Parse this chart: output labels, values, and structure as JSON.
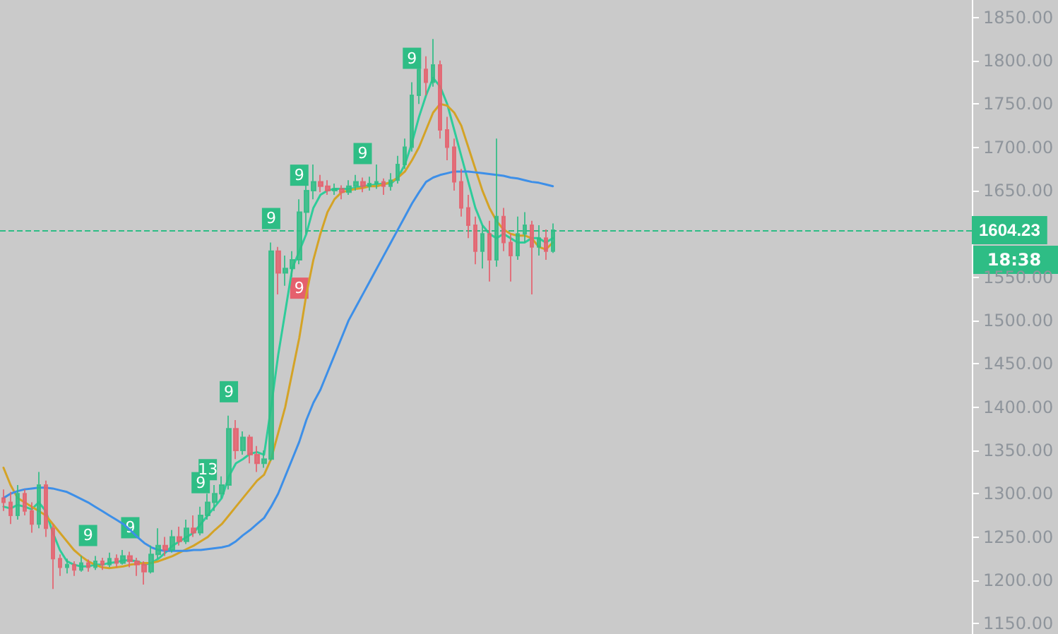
{
  "chart_data": {
    "type": "candlestick",
    "categories": [
      null,
      null,
      null,
      null,
      null,
      null,
      null,
      null,
      null,
      null,
      null,
      null,
      null,
      null,
      null,
      null,
      null,
      null,
      null,
      null,
      null,
      null,
      null,
      null,
      null,
      null,
      null,
      null,
      null,
      null,
      null,
      null,
      null,
      null,
      null,
      null,
      null,
      null,
      null,
      null,
      null,
      null,
      null,
      null,
      null,
      null,
      null,
      null,
      null,
      null,
      null,
      null,
      null,
      null,
      null,
      null,
      null,
      null,
      null,
      null,
      null,
      null,
      null,
      null,
      null,
      null,
      null,
      null,
      null,
      null,
      null,
      null,
      null,
      null,
      null,
      null,
      null,
      null,
      null,
      null,
      null,
      null,
      null,
      null,
      null,
      null,
      null,
      null,
      null,
      null,
      null,
      null,
      null,
      null,
      null,
      null,
      null,
      null,
      null,
      null,
      null,
      null,
      null,
      null,
      null,
      null,
      null,
      null,
      null,
      null,
      null,
      null,
      null,
      null,
      null,
      null,
      null,
      null,
      null,
      null,
      null,
      null,
      null,
      null,
      null,
      null,
      null,
      null,
      null,
      null,
      null,
      null,
      null,
      null,
      null,
      null,
      null,
      null
    ],
    "colors": [
      "#e5606d",
      "#e5606d",
      "#2ebd85",
      "#e5606d",
      "#e5606d",
      "#2ebd85",
      "#e5606d",
      "#e5606d",
      "#e5606d",
      "#2ebd85",
      "#e5606d",
      "#2ebd85",
      "#e5606d",
      "#2ebd85",
      "#e5606d",
      "#2ebd85",
      "#e5606d",
      "#2ebd85",
      "#e5606d",
      "#e5606d",
      "#e5606d",
      "#2ebd85",
      "#2ebd85",
      "#e5606d",
      "#2ebd85",
      "#e5606d",
      "#2ebd85",
      "#e5606d",
      "#2ebd85",
      "#2ebd85",
      "#2ebd85",
      "#2ebd85",
      "#2ebd85",
      "#e5606d",
      "#2ebd85",
      "#e5606d",
      "#e5606d",
      "#2ebd85",
      "#2ebd85",
      "#e5606d",
      "#2ebd85",
      "#2ebd85",
      "#2ebd85",
      "#2ebd85",
      "#2ebd85",
      "#e5606d",
      "#e5606d",
      "#2ebd85",
      "#e5606d",
      "#2ebd85",
      "#2ebd85",
      "#e5606d",
      "#2ebd85",
      "#2ebd85",
      "#e5606d",
      "#2ebd85",
      "#2ebd85",
      "#2ebd85",
      "#2ebd85",
      "#2ebd85",
      "#e5606d",
      "#2ebd85",
      "#e5606d",
      "#e5606d",
      "#e5606d",
      "#e5606d",
      "#e5606d",
      "#e5606d",
      "#2ebd85",
      "#e5606d",
      "#2ebd85",
      "#e5606d",
      "#e5606d",
      "#2ebd85",
      "#2ebd85",
      "#e5606d",
      "#2ebd85",
      "#e5606d",
      "#2ebd85",
      null,
      null,
      null,
      null,
      null,
      null,
      null,
      null,
      null,
      null,
      null,
      null,
      null,
      null,
      null,
      null,
      null,
      null,
      null,
      null,
      null,
      null,
      null,
      null,
      null,
      null,
      null,
      null,
      null,
      null,
      null,
      null,
      null,
      null,
      null,
      null,
      null,
      null,
      null,
      null,
      null,
      null,
      null,
      null,
      null,
      null,
      null,
      null,
      null,
      null,
      null,
      null,
      null,
      null,
      null,
      null,
      null,
      null,
      null
    ],
    "ohlc": [
      [
        1295,
        1305,
        1280,
        1290
      ],
      [
        1290,
        1302,
        1265,
        1275
      ],
      [
        1275,
        1310,
        1270,
        1300
      ],
      [
        1300,
        1305,
        1275,
        1280
      ],
      [
        1280,
        1290,
        1255,
        1265
      ],
      [
        1265,
        1325,
        1260,
        1310
      ],
      [
        1310,
        1315,
        1250,
        1260
      ],
      [
        1260,
        1265,
        1190,
        1225
      ],
      [
        1225,
        1230,
        1205,
        1215
      ],
      [
        1215,
        1225,
        1208,
        1218
      ],
      [
        1218,
        1222,
        1205,
        1212
      ],
      [
        1212,
        1228,
        1210,
        1220
      ],
      [
        1220,
        1224,
        1210,
        1215
      ],
      [
        1215,
        1228,
        1212,
        1222
      ],
      [
        1222,
        1226,
        1212,
        1218
      ],
      [
        1218,
        1232,
        1215,
        1225
      ],
      [
        1225,
        1230,
        1215,
        1220
      ],
      [
        1220,
        1235,
        1218,
        1228
      ],
      [
        1228,
        1233,
        1215,
        1222
      ],
      [
        1222,
        1226,
        1205,
        1218
      ],
      [
        1218,
        1222,
        1195,
        1210
      ],
      [
        1210,
        1240,
        1208,
        1230
      ],
      [
        1230,
        1260,
        1225,
        1240
      ],
      [
        1240,
        1250,
        1228,
        1235
      ],
      [
        1235,
        1258,
        1232,
        1250
      ],
      [
        1250,
        1262,
        1240,
        1245
      ],
      [
        1245,
        1270,
        1242,
        1260
      ],
      [
        1260,
        1275,
        1250,
        1255
      ],
      [
        1255,
        1285,
        1252,
        1275
      ],
      [
        1275,
        1300,
        1270,
        1290
      ],
      [
        1290,
        1310,
        1280,
        1300
      ],
      [
        1300,
        1320,
        1295,
        1310
      ],
      [
        1310,
        1390,
        1305,
        1375
      ],
      [
        1375,
        1385,
        1340,
        1350
      ],
      [
        1350,
        1372,
        1345,
        1365
      ],
      [
        1365,
        1368,
        1335,
        1345
      ],
      [
        1345,
        1355,
        1325,
        1335
      ],
      [
        1335,
        1350,
        1330,
        1340
      ],
      [
        1340,
        1590,
        1338,
        1580
      ],
      [
        1580,
        1585,
        1530,
        1555
      ],
      [
        1555,
        1575,
        1540,
        1560
      ],
      [
        1560,
        1580,
        1550,
        1570
      ],
      [
        1570,
        1640,
        1565,
        1625
      ],
      [
        1625,
        1663,
        1600,
        1650
      ],
      [
        1650,
        1680,
        1640,
        1660
      ],
      [
        1660,
        1668,
        1648,
        1655
      ],
      [
        1655,
        1662,
        1645,
        1650
      ],
      [
        1650,
        1658,
        1645,
        1652
      ],
      [
        1652,
        1656,
        1640,
        1648
      ],
      [
        1648,
        1662,
        1645,
        1655
      ],
      [
        1655,
        1668,
        1650,
        1660
      ],
      [
        1660,
        1665,
        1648,
        1655
      ],
      [
        1655,
        1666,
        1650,
        1658
      ],
      [
        1658,
        1680,
        1652,
        1660
      ],
      [
        1660,
        1664,
        1645,
        1655
      ],
      [
        1655,
        1670,
        1650,
        1662
      ],
      [
        1662,
        1690,
        1658,
        1680
      ],
      [
        1680,
        1710,
        1675,
        1700
      ],
      [
        1700,
        1775,
        1695,
        1760
      ],
      [
        1760,
        1810,
        1750,
        1790
      ],
      [
        1790,
        1805,
        1760,
        1775
      ],
      [
        1775,
        1825,
        1770,
        1795
      ],
      [
        1795,
        1800,
        1710,
        1720
      ],
      [
        1720,
        1735,
        1685,
        1700
      ],
      [
        1700,
        1710,
        1650,
        1660
      ],
      [
        1660,
        1675,
        1620,
        1630
      ],
      [
        1630,
        1645,
        1595,
        1610
      ],
      [
        1610,
        1620,
        1565,
        1580
      ],
      [
        1580,
        1610,
        1560,
        1600
      ],
      [
        1600,
        1615,
        1545,
        1570
      ],
      [
        1570,
        1710,
        1562,
        1620
      ],
      [
        1620,
        1630,
        1580,
        1590
      ],
      [
        1590,
        1600,
        1545,
        1575
      ],
      [
        1575,
        1620,
        1570,
        1600
      ],
      [
        1600,
        1625,
        1590,
        1610
      ],
      [
        1610,
        1615,
        1530,
        1585
      ],
      [
        1585,
        1610,
        1575,
        1595
      ],
      [
        1595,
        1605,
        1570,
        1580
      ],
      [
        1580,
        1612,
        1578,
        1604.23
      ],
      null,
      null,
      null,
      null,
      null,
      null,
      null,
      null,
      null,
      null,
      null,
      null,
      null,
      null,
      null,
      null,
      null,
      null,
      null,
      null,
      null,
      null,
      null,
      null,
      null,
      null,
      null,
      null,
      null,
      null,
      null,
      null,
      null,
      null,
      null,
      null,
      null,
      null,
      null,
      null,
      null,
      null,
      null,
      null,
      null,
      null,
      null,
      null,
      null,
      null,
      null,
      null,
      null,
      null,
      null,
      null,
      null,
      null,
      null
    ],
    "series": [
      {
        "type": "line",
        "color": "#2ecc9a",
        "values": [
          1285,
          1283,
          1287,
          1285,
          1282,
          1290,
          1280,
          1255,
          1235,
          1222,
          1218,
          1216,
          1216,
          1218,
          1218,
          1220,
          1221,
          1223,
          1223,
          1222,
          1218,
          1220,
          1225,
          1232,
          1240,
          1245,
          1250,
          1255,
          1265,
          1275,
          1285,
          1295,
          1320,
          1335,
          1340,
          1346,
          1348,
          1345,
          1400,
          1460,
          1510,
          1560,
          1580,
          1600,
          1630,
          1645,
          1650,
          1652,
          1652,
          1652,
          1653,
          1655,
          1656,
          1657,
          1658,
          1658,
          1665,
          1680,
          1705,
          1735,
          1760,
          1780,
          1770,
          1750,
          1720,
          1690,
          1660,
          1630,
          1610,
          1600,
          1595,
          1600,
          1595,
          1590,
          1590,
          1595,
          1595,
          1590,
          1595,
          null,
          null,
          null,
          null,
          null,
          null,
          null,
          null,
          null,
          null,
          null,
          null,
          null,
          null,
          null,
          null,
          null,
          null,
          null,
          null,
          null,
          null,
          null,
          null,
          null,
          null,
          null,
          null,
          null,
          null,
          null,
          null,
          null,
          null,
          null,
          null,
          null,
          null,
          null,
          null,
          null,
          null,
          null,
          null,
          null,
          null,
          null,
          null,
          null,
          null,
          null,
          null,
          null,
          null,
          null,
          null,
          null,
          null,
          null
        ]
      },
      {
        "type": "line",
        "color": "#d4a326",
        "values": [
          1330,
          1310,
          1295,
          1290,
          1285,
          1280,
          1275,
          1265,
          1255,
          1245,
          1235,
          1228,
          1222,
          1218,
          1215,
          1214,
          1215,
          1216,
          1218,
          1219,
          1220,
          1220,
          1222,
          1225,
          1228,
          1232,
          1236,
          1240,
          1245,
          1250,
          1258,
          1265,
          1275,
          1285,
          1295,
          1305,
          1315,
          1322,
          1340,
          1370,
          1400,
          1440,
          1480,
          1530,
          1570,
          1600,
          1625,
          1640,
          1648,
          1650,
          1652,
          1653,
          1655,
          1655,
          1657,
          1660,
          1665,
          1672,
          1685,
          1700,
          1720,
          1740,
          1750,
          1748,
          1740,
          1725,
          1700,
          1675,
          1650,
          1630,
          1615,
          1605,
          1600,
          1598,
          1598,
          1595,
          1585,
          1582,
          1590,
          null,
          null,
          null,
          null,
          null,
          null,
          null,
          null,
          null,
          null,
          null,
          null,
          null,
          null,
          null,
          null,
          null,
          null,
          null,
          null,
          null,
          null,
          null,
          null,
          null,
          null,
          null,
          null,
          null,
          null,
          null,
          null,
          null,
          null,
          null,
          null,
          null,
          null,
          null,
          null,
          null,
          null,
          null,
          null,
          null,
          null,
          null,
          null,
          null,
          null,
          null,
          null,
          null,
          null,
          null,
          null,
          null,
          null,
          null
        ]
      },
      {
        "type": "line",
        "color": "#3d8fe8",
        "values": [
          1295,
          1300,
          1303,
          1305,
          1306,
          1307,
          1307,
          1306,
          1304,
          1302,
          1298,
          1294,
          1290,
          1285,
          1280,
          1275,
          1270,
          1265,
          1258,
          1250,
          1243,
          1238,
          1235,
          1234,
          1234,
          1234,
          1234,
          1235,
          1235,
          1236,
          1237,
          1238,
          1240,
          1245,
          1252,
          1258,
          1265,
          1272,
          1285,
          1300,
          1320,
          1340,
          1360,
          1385,
          1405,
          1420,
          1440,
          1460,
          1480,
          1500,
          1515,
          1530,
          1545,
          1560,
          1575,
          1590,
          1605,
          1620,
          1635,
          1648,
          1660,
          1665,
          1668,
          1670,
          1672,
          1672,
          1672,
          1671,
          1670,
          1669,
          1668,
          1667,
          1665,
          1664,
          1662,
          1660,
          1659,
          1657,
          1655,
          null,
          null,
          null,
          null,
          null,
          null,
          null,
          null,
          null,
          null,
          null,
          null,
          null,
          null,
          null,
          null,
          null,
          null,
          null,
          null,
          null,
          null,
          null,
          null,
          null,
          null,
          null,
          null,
          null,
          null,
          null,
          null,
          null,
          null,
          null,
          null,
          null,
          null,
          null,
          null,
          null,
          null,
          null,
          null,
          null,
          null,
          null,
          null,
          null,
          null,
          null,
          null,
          null,
          null,
          null,
          null,
          null,
          null,
          null
        ]
      }
    ],
    "ylim": [
      1138,
      1870
    ],
    "yticks": [
      {
        "value": 1150,
        "label": "1150.00"
      },
      {
        "value": 1200,
        "label": "1200.00"
      },
      {
        "value": 1250,
        "label": "1250.00"
      },
      {
        "value": 1300,
        "label": "1300.00"
      },
      {
        "value": 1350,
        "label": "1350.00"
      },
      {
        "value": 1400,
        "label": "1400.00"
      },
      {
        "value": 1450,
        "label": "1450.00"
      },
      {
        "value": 1500,
        "label": "1500.00"
      },
      {
        "value": 1550,
        "label": "1550.00"
      },
      {
        "value": 1650,
        "label": "1650.00"
      },
      {
        "value": 1700,
        "label": "1700.00"
      },
      {
        "value": 1750,
        "label": "1750.00"
      },
      {
        "value": 1800,
        "label": "1800.00"
      },
      {
        "value": 1850,
        "label": "1850.00"
      }
    ],
    "ref_lines": [
      {
        "axis": "y",
        "value": 1604.23,
        "label": "1604.23",
        "color": "#2ebd85",
        "line_style": "dashed"
      }
    ],
    "annotations": [
      {
        "text": "9",
        "y": 1224
      },
      {
        "text": "9",
        "y": 1233
      },
      {
        "text": "9",
        "y": 1285
      },
      {
        "text": "13",
        "y": 1300
      },
      {
        "text": "9",
        "y": 1390
      },
      {
        "text": "9",
        "y": 1590
      },
      {
        "text": "9",
        "y": 1640
      },
      {
        "text": "9",
        "y": 1665
      },
      {
        "text": "9",
        "y": 1775
      },
      {
        "text": "9",
        "y": 1565
      },
      "18:38"
    ],
    "tick_labels": "y",
    "grid": false,
    "line_style": "solid"
  }
}
